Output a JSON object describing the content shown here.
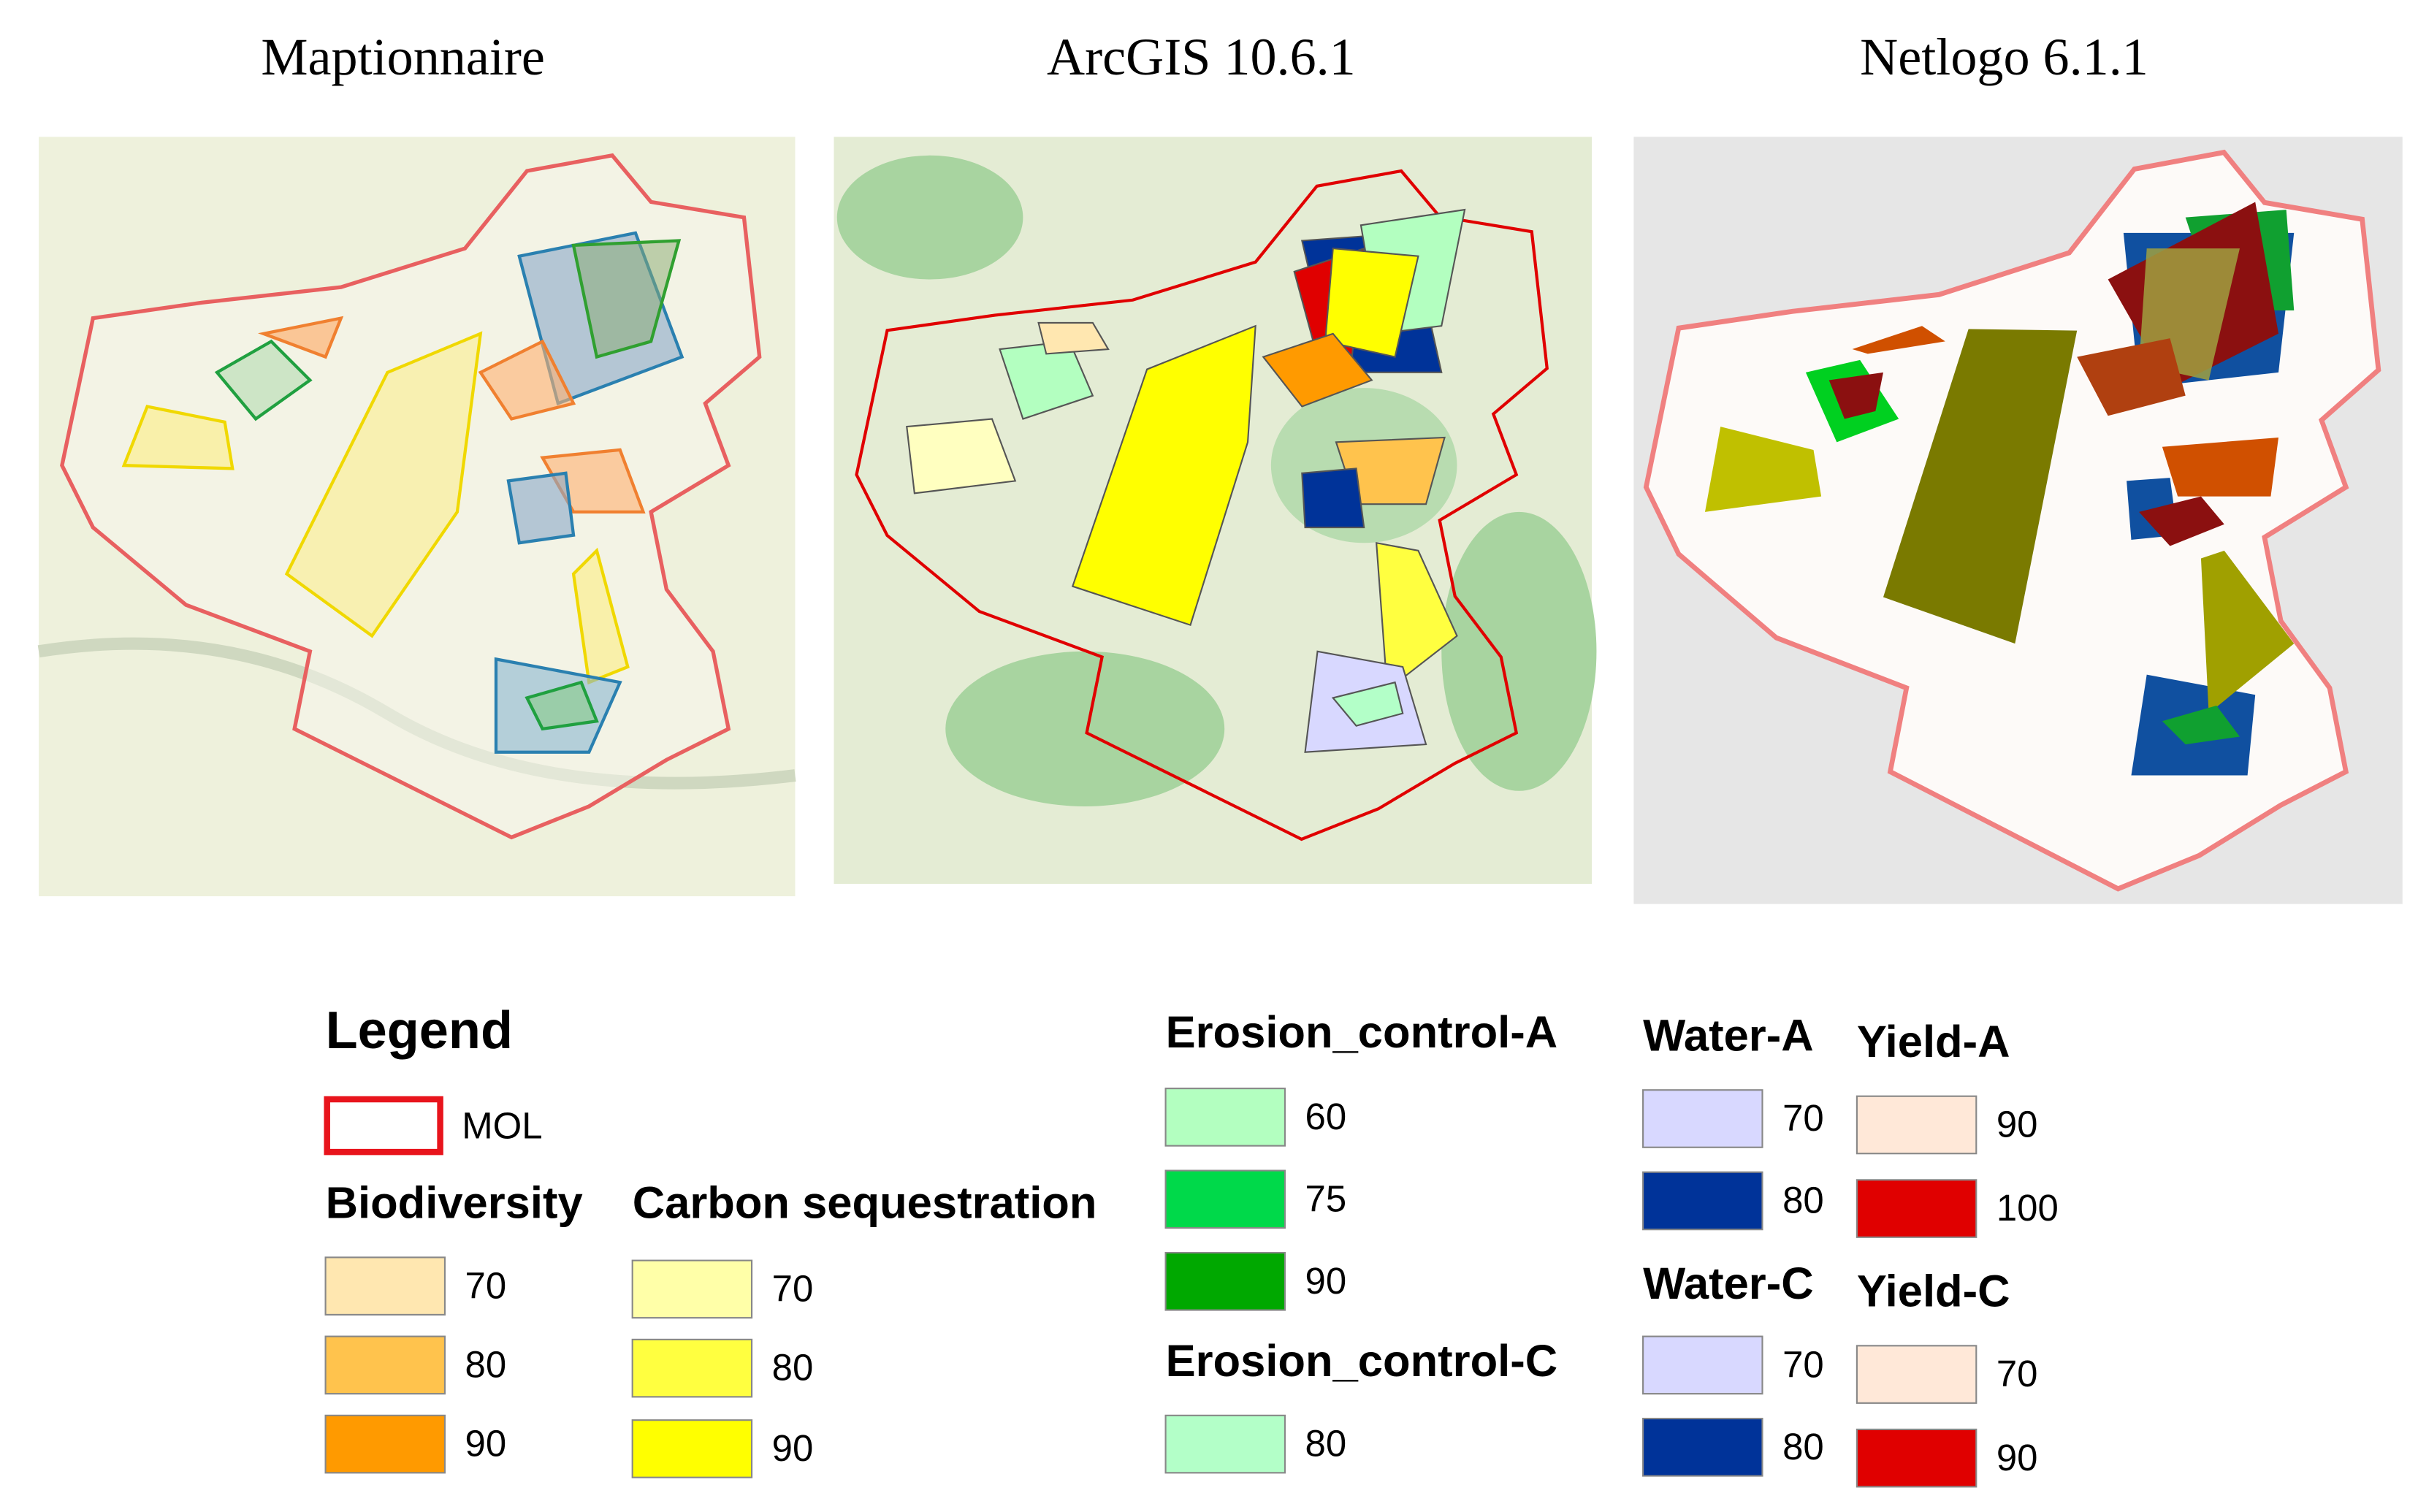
{
  "panels": [
    {
      "title": "Maptionnaire"
    },
    {
      "title": "ArcGIS 10.6.1"
    },
    {
      "title": "Netlogo 6.1.1"
    }
  ],
  "legend": {
    "title": "Legend",
    "boundary": {
      "label": "MOL",
      "color": "#e8141c"
    },
    "groups": [
      {
        "name": "Biodiversity",
        "items": [
          {
            "label": 70,
            "color": "#ffe7b0"
          },
          {
            "label": 80,
            "color": "#ffc34d"
          },
          {
            "label": 90,
            "color": "#ff9a00"
          }
        ]
      },
      {
        "name": "Carbon sequestration",
        "items": [
          {
            "label": 70,
            "color": "#ffffa8"
          },
          {
            "label": 80,
            "color": "#ffff40"
          },
          {
            "label": 90,
            "color": "#ffff00"
          }
        ]
      },
      {
        "name": "Erosion_control-A",
        "items": [
          {
            "label": 60,
            "color": "#b3ffc0"
          },
          {
            "label": 75,
            "color": "#00d94a"
          },
          {
            "label": 90,
            "color": "#00a800"
          }
        ]
      },
      {
        "name": "Erosion_control-C",
        "items": [
          {
            "label": 80,
            "color": "#b3ffc8"
          }
        ]
      },
      {
        "name": "Water-A",
        "items": [
          {
            "label": 70,
            "color": "#d8d8ff"
          },
          {
            "label": 80,
            "color": "#003399"
          }
        ]
      },
      {
        "name": "Water-C",
        "items": [
          {
            "label": 70,
            "color": "#d8d8ff"
          },
          {
            "label": 80,
            "color": "#003399"
          }
        ]
      },
      {
        "name": "Yield-A",
        "items": [
          {
            "label": 90,
            "color": "#ffe8d8"
          },
          {
            "label": 100,
            "color": "#e00000"
          }
        ]
      },
      {
        "name": "Yield-C",
        "items": [
          {
            "label": 70,
            "color": "#ffe8d8"
          },
          {
            "label": 90,
            "color": "#e00000"
          }
        ]
      }
    ]
  }
}
